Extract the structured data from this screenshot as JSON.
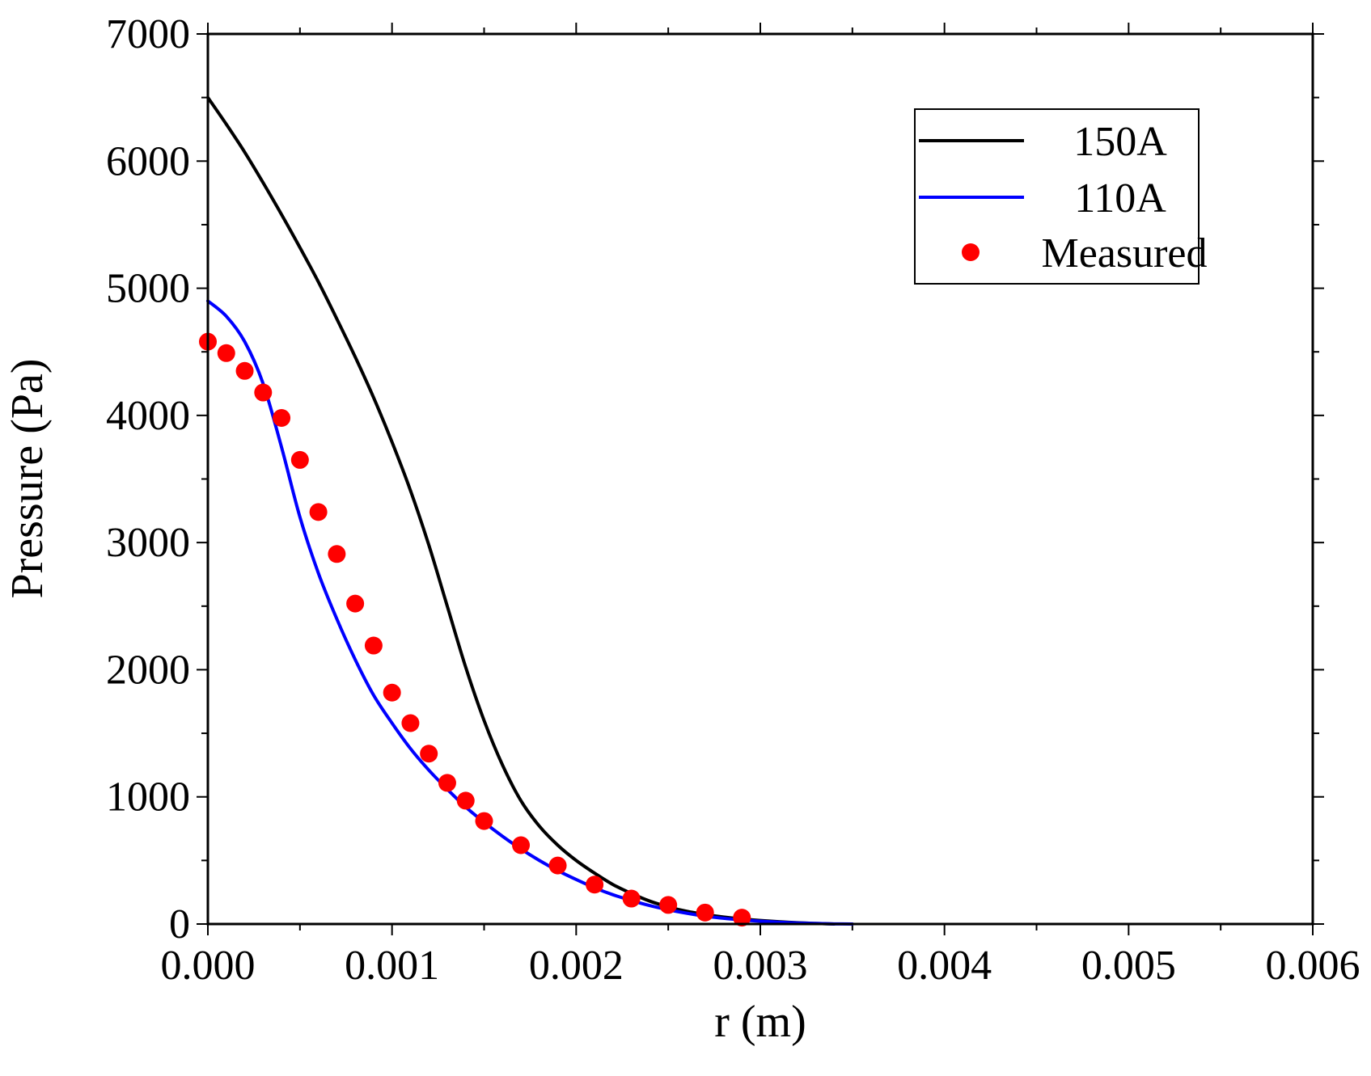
{
  "chart_data": {
    "type": "line",
    "title": "",
    "xlabel": "r (m)",
    "ylabel": "Pressure (Pa)",
    "xlim": [
      0,
      0.006
    ],
    "ylim": [
      0,
      7000
    ],
    "xticks": [
      0.0,
      0.001,
      0.002,
      0.003,
      0.004,
      0.005,
      0.006
    ],
    "xtick_labels": [
      "0.000",
      "0.001",
      "0.002",
      "0.003",
      "0.004",
      "0.005",
      "0.006"
    ],
    "yticks": [
      0,
      1000,
      2000,
      3000,
      4000,
      5000,
      6000,
      7000
    ],
    "ytick_labels": [
      "0",
      "1000",
      "2000",
      "3000",
      "4000",
      "5000",
      "6000",
      "7000"
    ],
    "grid": false,
    "legend_position": "top-right",
    "series": [
      {
        "name": "150A",
        "kind": "line",
        "color": "#000000",
        "x": [
          0,
          0.0001,
          0.0002,
          0.0003,
          0.0004,
          0.0005,
          0.0006,
          0.0007,
          0.0008,
          0.0009,
          0.001,
          0.0011,
          0.0012,
          0.0013,
          0.0014,
          0.0015,
          0.0016,
          0.0017,
          0.0018,
          0.0019,
          0.002,
          0.0021,
          0.0022,
          0.0023,
          0.0024,
          0.0025,
          0.0026,
          0.0027,
          0.0028,
          0.0029,
          0.003,
          0.0031,
          0.0032,
          0.0033,
          0.0034
        ],
        "y": [
          6500,
          6290,
          6070,
          5830,
          5580,
          5320,
          5050,
          4760,
          4460,
          4140,
          3790,
          3410,
          2980,
          2500,
          2020,
          1600,
          1250,
          970,
          770,
          620,
          500,
          400,
          310,
          240,
          180,
          135,
          100,
          75,
          55,
          40,
          28,
          18,
          10,
          5,
          0
        ]
      },
      {
        "name": "110A",
        "kind": "line",
        "color": "#0000ff",
        "x": [
          0,
          0.0001,
          0.0002,
          0.0003,
          0.0004,
          0.0005,
          0.0006,
          0.0007,
          0.0008,
          0.0009,
          0.001,
          0.0011,
          0.0012,
          0.0013,
          0.0014,
          0.0015,
          0.0016,
          0.0017,
          0.0018,
          0.0019,
          0.002,
          0.0021,
          0.0022,
          0.0023,
          0.0024,
          0.0025,
          0.0026,
          0.0027,
          0.0028,
          0.0029,
          0.003,
          0.0031,
          0.0032,
          0.0033,
          0.0034,
          0.0035
        ],
        "y": [
          4900,
          4780,
          4580,
          4250,
          3750,
          3200,
          2760,
          2400,
          2080,
          1800,
          1580,
          1380,
          1210,
          1060,
          920,
          800,
          690,
          590,
          500,
          420,
          350,
          285,
          230,
          185,
          145,
          112,
          85,
          62,
          45,
          32,
          22,
          14,
          8,
          4,
          1,
          0
        ]
      },
      {
        "name": "Measured",
        "kind": "scatter",
        "color": "#ff0000",
        "x": [
          0,
          0.0001,
          0.0002,
          0.0003,
          0.0004,
          0.0005,
          0.0006,
          0.0007,
          0.0008,
          0.0009,
          0.001,
          0.0011,
          0.0012,
          0.0013,
          0.0014,
          0.0015,
          0.0017,
          0.0019,
          0.0021,
          0.0023,
          0.0025,
          0.0027,
          0.0029
        ],
        "y": [
          4580,
          4490,
          4350,
          4180,
          3980,
          3650,
          3240,
          2910,
          2520,
          2190,
          1820,
          1580,
          1340,
          1110,
          970,
          810,
          620,
          460,
          310,
          200,
          150,
          90,
          50
        ]
      }
    ]
  }
}
